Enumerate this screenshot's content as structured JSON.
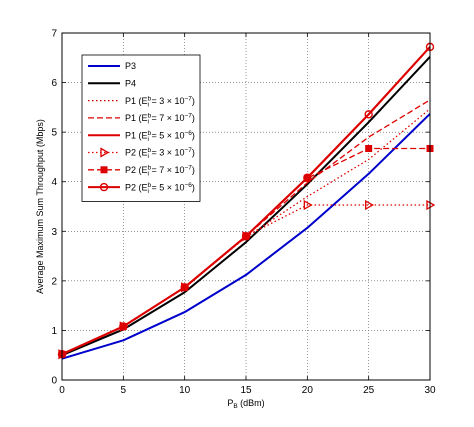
{
  "chart_data": {
    "type": "line",
    "xlabel_main": "P",
    "xlabel_sub": "B",
    "xlabel_unit": " (dBm)",
    "ylabel": "Average Maximum Sum Throughput (Mbps)",
    "xlim": [
      0,
      30
    ],
    "ylim": [
      0,
      7
    ],
    "x_ticks": [
      "0",
      "5",
      "10",
      "15",
      "20",
      "25",
      "30"
    ],
    "y_ticks": [
      "0",
      "1",
      "2",
      "3",
      "4",
      "5",
      "6",
      "7"
    ],
    "grid": "dotted",
    "legend_position": "top-left",
    "series": [
      {
        "name": "P3",
        "color": "#0000cc",
        "dash": "solid",
        "marker": "none",
        "x": [
          0,
          5,
          10,
          15,
          20,
          25,
          30
        ],
        "y": [
          0.43,
          0.8,
          1.37,
          2.12,
          3.07,
          4.16,
          5.37
        ]
      },
      {
        "name": "P4",
        "color": "#000000",
        "dash": "solid",
        "marker": "none",
        "x": [
          0,
          5,
          10,
          15,
          20,
          25,
          30
        ],
        "y": [
          0.5,
          1.02,
          1.77,
          2.78,
          3.95,
          5.2,
          6.52
        ]
      },
      {
        "name_prefix": "P1 (E",
        "name_sup": "b",
        "name_sub": "i",
        "name_value": " = 3 × 10",
        "name_exp": "−7",
        "name_suffix": ")",
        "color": "#dd0000",
        "dash": "dotted",
        "marker": "none",
        "x": [
          0,
          5,
          10,
          15,
          20,
          25,
          30
        ],
        "y": [
          0.52,
          1.08,
          1.87,
          2.88,
          3.7,
          4.45,
          5.47
        ]
      },
      {
        "name_prefix": "P1 (E",
        "name_sup": "b",
        "name_sub": "i",
        "name_value": " = 7 × 10",
        "name_exp": "−7",
        "name_suffix": ")",
        "color": "#dd0000",
        "dash": "dashed",
        "marker": "none",
        "x": [
          0,
          5,
          10,
          15,
          20,
          25,
          30
        ],
        "y": [
          0.52,
          1.08,
          1.87,
          2.9,
          3.98,
          4.9,
          5.65
        ]
      },
      {
        "name_prefix": "P1 (E",
        "name_sup": "b",
        "name_sub": "i",
        "name_value": " = 5 × 10",
        "name_exp": "−6",
        "name_suffix": ")",
        "color": "#dd0000",
        "dash": "solid",
        "marker": "none",
        "x": [
          0,
          5,
          10,
          15,
          20,
          25,
          30
        ],
        "y": [
          0.52,
          1.08,
          1.87,
          2.9,
          4.08,
          5.36,
          6.72
        ]
      },
      {
        "name_prefix": "P2 (E",
        "name_sup": "b",
        "name_sub": "i",
        "name_value": " = 3 × 10",
        "name_exp": "−7",
        "name_suffix": ")",
        "color": "#dd0000",
        "dash": "dotted",
        "marker": "triangle",
        "x": [
          0,
          5,
          10,
          15,
          20,
          25,
          30
        ],
        "y": [
          0.52,
          1.08,
          1.87,
          2.9,
          3.53,
          3.53,
          3.53
        ]
      },
      {
        "name_prefix": "P2 (E",
        "name_sup": "b",
        "name_sub": "i",
        "name_value": " = 7 × 10",
        "name_exp": "−7",
        "name_suffix": ")",
        "color": "#dd0000",
        "dash": "dashed",
        "marker": "square",
        "x": [
          0,
          5,
          10,
          15,
          20,
          25,
          30
        ],
        "y": [
          0.52,
          1.08,
          1.87,
          2.9,
          4.07,
          4.67,
          4.67
        ]
      },
      {
        "name_prefix": "P2 (E",
        "name_sup": "b",
        "name_sub": "i",
        "name_value": " = 5 × 10",
        "name_exp": "−6",
        "name_suffix": ")",
        "color": "#dd0000",
        "dash": "solid",
        "marker": "circle",
        "x": [
          0,
          5,
          10,
          15,
          20,
          25,
          30
        ],
        "y": [
          0.52,
          1.08,
          1.87,
          2.9,
          4.08,
          5.36,
          6.72
        ]
      }
    ]
  }
}
